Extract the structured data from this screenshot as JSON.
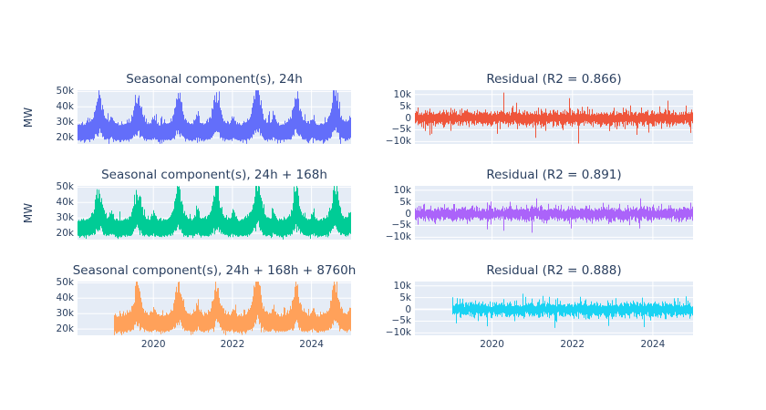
{
  "figure": {
    "background": "#ffffff",
    "plot_background": "#e5ecf6",
    "grid_color": "#ffffff",
    "font_color": "#2a3f5f",
    "description": "Time-series decomposition: seasonal components (left column, MW) and model residuals (right column), 3 rows"
  },
  "chart_data": [
    {
      "type": "line",
      "kind": "seasonal",
      "row": 1,
      "col": 1,
      "title": "Seasonal component(s), 24h",
      "ylabel": "MW",
      "color": "#636EFA",
      "seed": 11,
      "x_range": [
        2018.08,
        2025.0
      ],
      "start_year": 2018.08,
      "ylim": [
        15900,
        50800
      ],
      "yticks": [
        {
          "label": "50k",
          "value": 50000
        },
        {
          "label": "40k",
          "value": 40000
        },
        {
          "label": "30k",
          "value": 30000
        },
        {
          "label": "20k",
          "value": 20000
        }
      ],
      "xticks": [
        {
          "label": "2020",
          "value": 2020
        },
        {
          "label": "2022",
          "value": 2022
        },
        {
          "label": "2024",
          "value": 2024
        }
      ],
      "show_xtick_labels": false,
      "pattern": {
        "base_low": 18600,
        "base_high": 28200,
        "summer_peaks": [
          {
            "year": 2018.62,
            "amp": 15500
          },
          {
            "year": 2019.6,
            "amp": 14800
          },
          {
            "year": 2020.64,
            "amp": 17200
          },
          {
            "year": 2021.6,
            "amp": 15800
          },
          {
            "year": 2022.63,
            "amp": 21600
          },
          {
            "year": 2023.62,
            "amp": 15200
          },
          {
            "year": 2024.6,
            "amp": 17800
          }
        ],
        "winter_peaks": [
          {
            "year": 2018.95,
            "amp": 4200
          },
          {
            "year": 2020.02,
            "amp": 4800
          },
          {
            "year": 2021.12,
            "amp": 8200
          },
          {
            "year": 2022.03,
            "amp": 5200
          },
          {
            "year": 2023.05,
            "amp": 5600
          },
          {
            "year": 2024.04,
            "amp": 5200
          },
          {
            "year": 2024.97,
            "amp": 4500
          }
        ]
      }
    },
    {
      "type": "line",
      "kind": "residual",
      "row": 1,
      "col": 2,
      "title": "Residual (R2 = 0.866)",
      "r2": 0.866,
      "ylabel": "",
      "color": "#EF553B",
      "seed": 21,
      "x_range": [
        2018.08,
        2025.0
      ],
      "start_year": 2018.08,
      "ylim": [
        -11000,
        11800
      ],
      "yticks": [
        {
          "label": "10k",
          "value": 10000
        },
        {
          "label": "5k",
          "value": 5000
        },
        {
          "label": "0",
          "value": 0
        },
        {
          "label": "−5k",
          "value": -5000
        },
        {
          "label": "−10k",
          "value": -10000
        }
      ],
      "xticks": [
        {
          "label": "2020",
          "value": 2020
        },
        {
          "label": "2022",
          "value": 2022
        },
        {
          "label": "2024",
          "value": 2024
        }
      ],
      "show_xtick_labels": false,
      "noise": {
        "band_pos": 1550,
        "band_neg": 1750,
        "tail": 1500,
        "spike_prob": 0.022,
        "spike_extra": 6200,
        "cap": 10800
      }
    },
    {
      "type": "line",
      "kind": "seasonal",
      "row": 2,
      "col": 1,
      "title": "Seasonal component(s), 24h + 168h",
      "ylabel": "MW",
      "color": "#00CC96",
      "seed": 32,
      "x_range": [
        2018.08,
        2025.0
      ],
      "start_year": 2018.08,
      "ylim": [
        15900,
        50800
      ],
      "yticks": [
        {
          "label": "50k",
          "value": 50000
        },
        {
          "label": "40k",
          "value": 40000
        },
        {
          "label": "30k",
          "value": 30000
        },
        {
          "label": "20k",
          "value": 20000
        }
      ],
      "xticks": [
        {
          "label": "2020",
          "value": 2020
        },
        {
          "label": "2022",
          "value": 2022
        },
        {
          "label": "2024",
          "value": 2024
        }
      ],
      "show_xtick_labels": false,
      "pattern": {
        "base_low": 18600,
        "base_high": 28200,
        "summer_peaks": [
          {
            "year": 2018.62,
            "amp": 15500
          },
          {
            "year": 2019.6,
            "amp": 14800
          },
          {
            "year": 2020.64,
            "amp": 17200
          },
          {
            "year": 2021.6,
            "amp": 15800
          },
          {
            "year": 2022.63,
            "amp": 21600
          },
          {
            "year": 2023.62,
            "amp": 15200
          },
          {
            "year": 2024.6,
            "amp": 17800
          }
        ],
        "winter_peaks": [
          {
            "year": 2018.95,
            "amp": 4200
          },
          {
            "year": 2020.02,
            "amp": 4800
          },
          {
            "year": 2021.12,
            "amp": 8200
          },
          {
            "year": 2022.03,
            "amp": 5200
          },
          {
            "year": 2023.05,
            "amp": 5600
          },
          {
            "year": 2024.04,
            "amp": 5200
          },
          {
            "year": 2024.97,
            "amp": 4500
          }
        ]
      }
    },
    {
      "type": "line",
      "kind": "residual",
      "row": 2,
      "col": 2,
      "title": "Residual (R2 = 0.891)",
      "r2": 0.891,
      "ylabel": "",
      "color": "#AB63FA",
      "seed": 42,
      "x_range": [
        2018.08,
        2025.0
      ],
      "start_year": 2018.08,
      "ylim": [
        -11000,
        11800
      ],
      "yticks": [
        {
          "label": "10k",
          "value": 10000
        },
        {
          "label": "5k",
          "value": 5000
        },
        {
          "label": "0",
          "value": 0
        },
        {
          "label": "−5k",
          "value": -5000
        },
        {
          "label": "−10k",
          "value": -10000
        }
      ],
      "xticks": [
        {
          "label": "2020",
          "value": 2020
        },
        {
          "label": "2022",
          "value": 2022
        },
        {
          "label": "2024",
          "value": 2024
        }
      ],
      "show_xtick_labels": false,
      "noise": {
        "band_pos": 1450,
        "band_neg": 1650,
        "tail": 1400,
        "spike_prob": 0.02,
        "spike_extra": 6200,
        "cap": 10800
      }
    },
    {
      "type": "line",
      "kind": "seasonal",
      "row": 3,
      "col": 1,
      "title": "Seasonal component(s), 24h + 168h + 8760h",
      "ylabel": "",
      "color": "#FFA15A",
      "seed": 53,
      "x_range": [
        2018.08,
        2025.0
      ],
      "start_year": 2019.0,
      "ylim": [
        15900,
        50800
      ],
      "yticks": [
        {
          "label": "50k",
          "value": 50000
        },
        {
          "label": "40k",
          "value": 40000
        },
        {
          "label": "30k",
          "value": 30000
        },
        {
          "label": "20k",
          "value": 20000
        }
      ],
      "xticks": [
        {
          "label": "2020",
          "value": 2020
        },
        {
          "label": "2022",
          "value": 2022
        },
        {
          "label": "2024",
          "value": 2024
        }
      ],
      "show_xtick_labels": true,
      "pattern": {
        "base_low": 18600,
        "base_high": 28200,
        "summer_peaks": [
          {
            "year": 2019.6,
            "amp": 14800
          },
          {
            "year": 2020.64,
            "amp": 17200
          },
          {
            "year": 2021.6,
            "amp": 15800
          },
          {
            "year": 2022.63,
            "amp": 21600
          },
          {
            "year": 2023.62,
            "amp": 15200
          },
          {
            "year": 2024.6,
            "amp": 17800
          }
        ],
        "winter_peaks": [
          {
            "year": 2020.02,
            "amp": 4800
          },
          {
            "year": 2021.12,
            "amp": 8200
          },
          {
            "year": 2022.03,
            "amp": 5200
          },
          {
            "year": 2023.05,
            "amp": 5600
          },
          {
            "year": 2024.04,
            "amp": 5200
          },
          {
            "year": 2024.97,
            "amp": 4500
          }
        ]
      }
    },
    {
      "type": "line",
      "kind": "residual",
      "row": 3,
      "col": 2,
      "title": "Residual (R2 = 0.888)",
      "r2": 0.888,
      "ylabel": "",
      "color": "#19D3F3",
      "seed": 63,
      "x_range": [
        2018.08,
        2025.0
      ],
      "start_year": 2019.0,
      "ylim": [
        -11000,
        11800
      ],
      "yticks": [
        {
          "label": "10k",
          "value": 10000
        },
        {
          "label": "5k",
          "value": 5000
        },
        {
          "label": "0",
          "value": 0
        },
        {
          "label": "−5k",
          "value": -5000
        },
        {
          "label": "−10k",
          "value": -10000
        }
      ],
      "xticks": [
        {
          "label": "2020",
          "value": 2020
        },
        {
          "label": "2022",
          "value": 2022
        },
        {
          "label": "2024",
          "value": 2024
        }
      ],
      "show_xtick_labels": true,
      "noise": {
        "band_pos": 1500,
        "band_neg": 1700,
        "tail": 1450,
        "spike_prob": 0.02,
        "spike_extra": 6200,
        "cap": 10800
      }
    }
  ]
}
